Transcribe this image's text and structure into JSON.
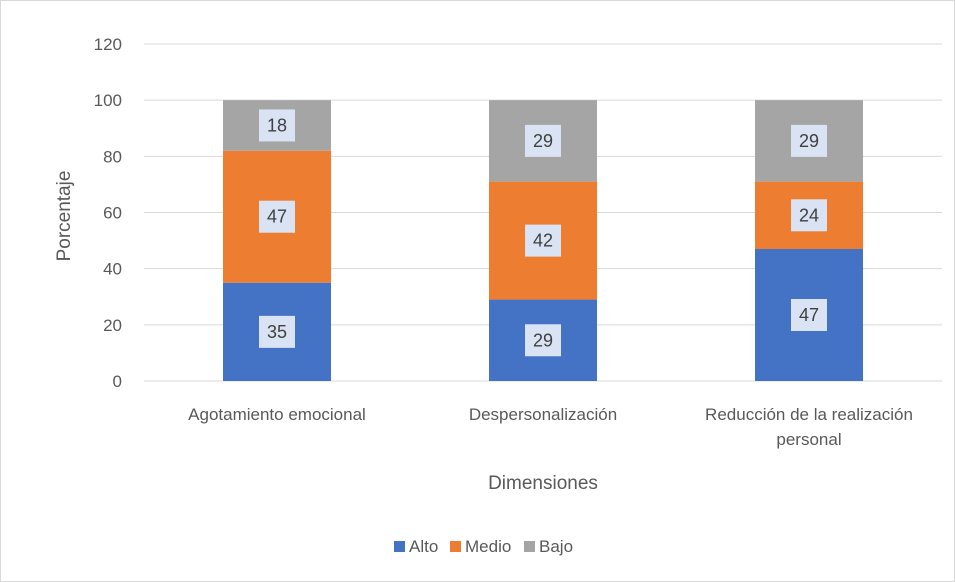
{
  "chart_data": {
    "type": "bar",
    "stacked": true,
    "categories": [
      [
        "Agotamiento emocional"
      ],
      [
        "Despersonalización"
      ],
      [
        "Reducción de la realización",
        "personal"
      ]
    ],
    "series": [
      {
        "name": "Alto",
        "values": [
          35,
          29,
          47
        ],
        "color": "#4472c4"
      },
      {
        "name": "Medio",
        "values": [
          47,
          42,
          24
        ],
        "color": "#ed7d31"
      },
      {
        "name": "Bajo",
        "values": [
          18,
          29,
          29
        ],
        "color": "#a5a5a5"
      }
    ],
    "xlabel": "Dimensiones",
    "ylabel": "Porcentaje",
    "ylim": [
      0,
      120
    ],
    "yticks": [
      0,
      20,
      40,
      60,
      80,
      100,
      120
    ],
    "grid": true,
    "legend_position": "bottom",
    "data_labels": true
  }
}
